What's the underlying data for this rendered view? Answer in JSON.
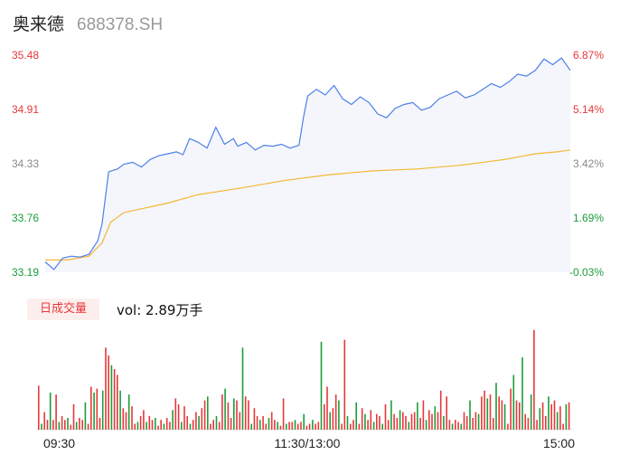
{
  "header": {
    "name": "奥来德",
    "code": "688378.SH"
  },
  "volume_tag": "日成交量",
  "volume_text": "vol: 2.89万手",
  "colors": {
    "price_line": "#4e7fe6",
    "avg_line": "#f5b731",
    "up": "#e8373a",
    "down": "#1a9e3a",
    "area": "#f4f6fc"
  },
  "chart_data": [
    {
      "type": "line",
      "title": "",
      "y_ticks_left": [
        "35.48",
        "34.91",
        "34.33",
        "33.76",
        "33.19"
      ],
      "y_ticks_right": [
        "6.87%",
        "5.14%",
        "3.42%",
        "1.69%",
        "-0.03%"
      ],
      "x_ticks": [
        "09:30",
        "11:30/13:00",
        "15:00"
      ],
      "ylim": [
        33.19,
        35.48
      ],
      "series": [
        {
          "name": "price",
          "x": [
            0,
            4,
            8,
            12,
            16,
            20,
            24,
            26,
            29,
            33,
            36,
            40,
            44,
            48,
            52,
            56,
            60,
            63,
            66,
            70,
            74,
            78,
            82,
            86,
            88,
            92,
            96,
            100,
            104,
            108,
            112,
            116,
            118,
            120,
            124,
            128,
            132,
            136,
            140,
            144,
            148,
            152,
            156,
            160,
            164,
            168,
            172,
            176,
            180,
            184,
            188,
            192,
            196,
            200,
            204,
            208,
            212,
            216,
            220,
            224,
            228,
            232,
            236,
            240
          ],
          "values": [
            33.3,
            33.22,
            33.34,
            33.36,
            33.35,
            33.38,
            33.52,
            33.7,
            34.25,
            34.28,
            34.33,
            34.35,
            34.3,
            34.38,
            34.42,
            34.44,
            34.46,
            34.43,
            34.6,
            34.56,
            34.5,
            34.72,
            34.54,
            34.6,
            34.52,
            34.56,
            34.48,
            34.53,
            34.52,
            34.54,
            34.5,
            34.53,
            34.82,
            35.05,
            35.12,
            35.06,
            35.16,
            35.02,
            34.96,
            35.04,
            34.98,
            34.86,
            34.82,
            34.92,
            34.96,
            34.98,
            34.9,
            34.93,
            35.02,
            35.06,
            35.1,
            35.03,
            35.06,
            35.12,
            35.18,
            35.14,
            35.2,
            35.28,
            35.26,
            35.32,
            35.44,
            35.38,
            35.45,
            35.32
          ]
        },
        {
          "name": "average",
          "x": [
            0,
            10,
            20,
            26,
            30,
            36,
            44,
            56,
            70,
            90,
            110,
            130,
            150,
            170,
            190,
            210,
            224,
            234,
            240
          ],
          "values": [
            33.32,
            33.32,
            33.36,
            33.5,
            33.72,
            33.82,
            33.86,
            33.92,
            34.01,
            34.08,
            34.16,
            34.22,
            34.26,
            34.28,
            34.32,
            34.38,
            34.44,
            34.46,
            34.48
          ]
        }
      ]
    },
    {
      "type": "bar",
      "title": "",
      "x_ticks": [
        "09:30",
        "11:30/13:00",
        "15:00"
      ],
      "ylim": [
        0,
        100
      ],
      "values": [
        45,
        6,
        18,
        10,
        38,
        10,
        36,
        8,
        14,
        10,
        12,
        5,
        26,
        8,
        12,
        10,
        28,
        6,
        44,
        38,
        42,
        12,
        40,
        84,
        76,
        66,
        62,
        56,
        40,
        22,
        18,
        36,
        24,
        6,
        8,
        14,
        20,
        8,
        14,
        10,
        12,
        4,
        10,
        6,
        12,
        8,
        20,
        32,
        26,
        8,
        24,
        14,
        6,
        10,
        18,
        14,
        22,
        30,
        34,
        6,
        10,
        14,
        8,
        36,
        42,
        28,
        12,
        32,
        30,
        18,
        84,
        34,
        30,
        6,
        22,
        14,
        10,
        14,
        6,
        12,
        18,
        10,
        8,
        4,
        32,
        6,
        8,
        8,
        10,
        6,
        8,
        16,
        4,
        6,
        10,
        6,
        8,
        90,
        26,
        44,
        18,
        22,
        36,
        30,
        6,
        92,
        14,
        6,
        10,
        28,
        6,
        22,
        16,
        10,
        20,
        8,
        16,
        14,
        6,
        26,
        10,
        30,
        16,
        12,
        20,
        18,
        14,
        8,
        16,
        18,
        28,
        12,
        30,
        10,
        20,
        16,
        24,
        18,
        40,
        14,
        34,
        10,
        6,
        10,
        8,
        6,
        18,
        14,
        30,
        12,
        18,
        16,
        34,
        40,
        32,
        36,
        12,
        48,
        34,
        30,
        26,
        6,
        42,
        56,
        30,
        28,
        74,
        16,
        12,
        36,
        102,
        10,
        22,
        28,
        14,
        34,
        26,
        30,
        18,
        24,
        6,
        26,
        28
      ]
    }
  ]
}
